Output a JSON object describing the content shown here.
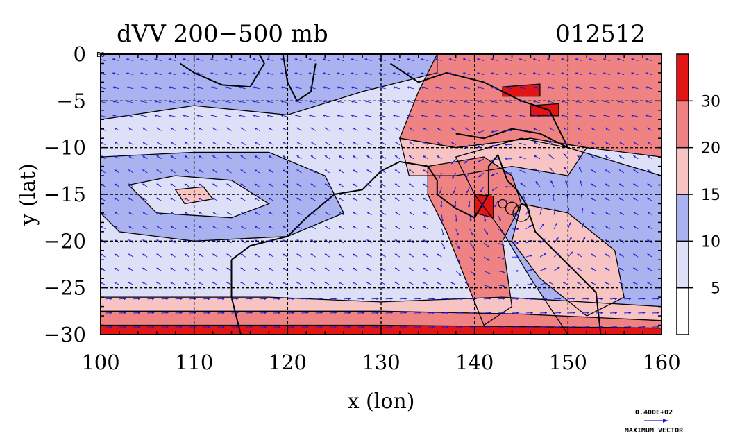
{
  "chart_data": {
    "type": "heatmap",
    "title_left": "dVV 200−500 mb",
    "title_right": "012512",
    "xlabel": "x (lon)",
    "ylabel": "y (lat)",
    "xlim": [
      100,
      160
    ],
    "ylim": [
      -30,
      0
    ],
    "xticks": [
      "100",
      "110",
      "120",
      "130",
      "140",
      "150",
      "160"
    ],
    "yticks": [
      "0",
      "−5",
      "−10",
      "−15",
      "−20",
      "−25",
      "−30"
    ],
    "grid": true,
    "colorbar": {
      "levels": [
        0,
        5,
        10,
        15,
        20,
        30,
        40
      ],
      "labels": [
        "5",
        "10",
        "15",
        "20",
        "30"
      ],
      "colors": [
        "#ffffff",
        "#dde0f6",
        "#aab3f0",
        "#f7c3c3",
        "#ef8383",
        "#e11515"
      ]
    },
    "vector_legend": {
      "value": "0.400E+02",
      "label": "MAXIMUM VECTOR",
      "arrow_color": "#1a1adc"
    },
    "corner_marker": "E0"
  }
}
